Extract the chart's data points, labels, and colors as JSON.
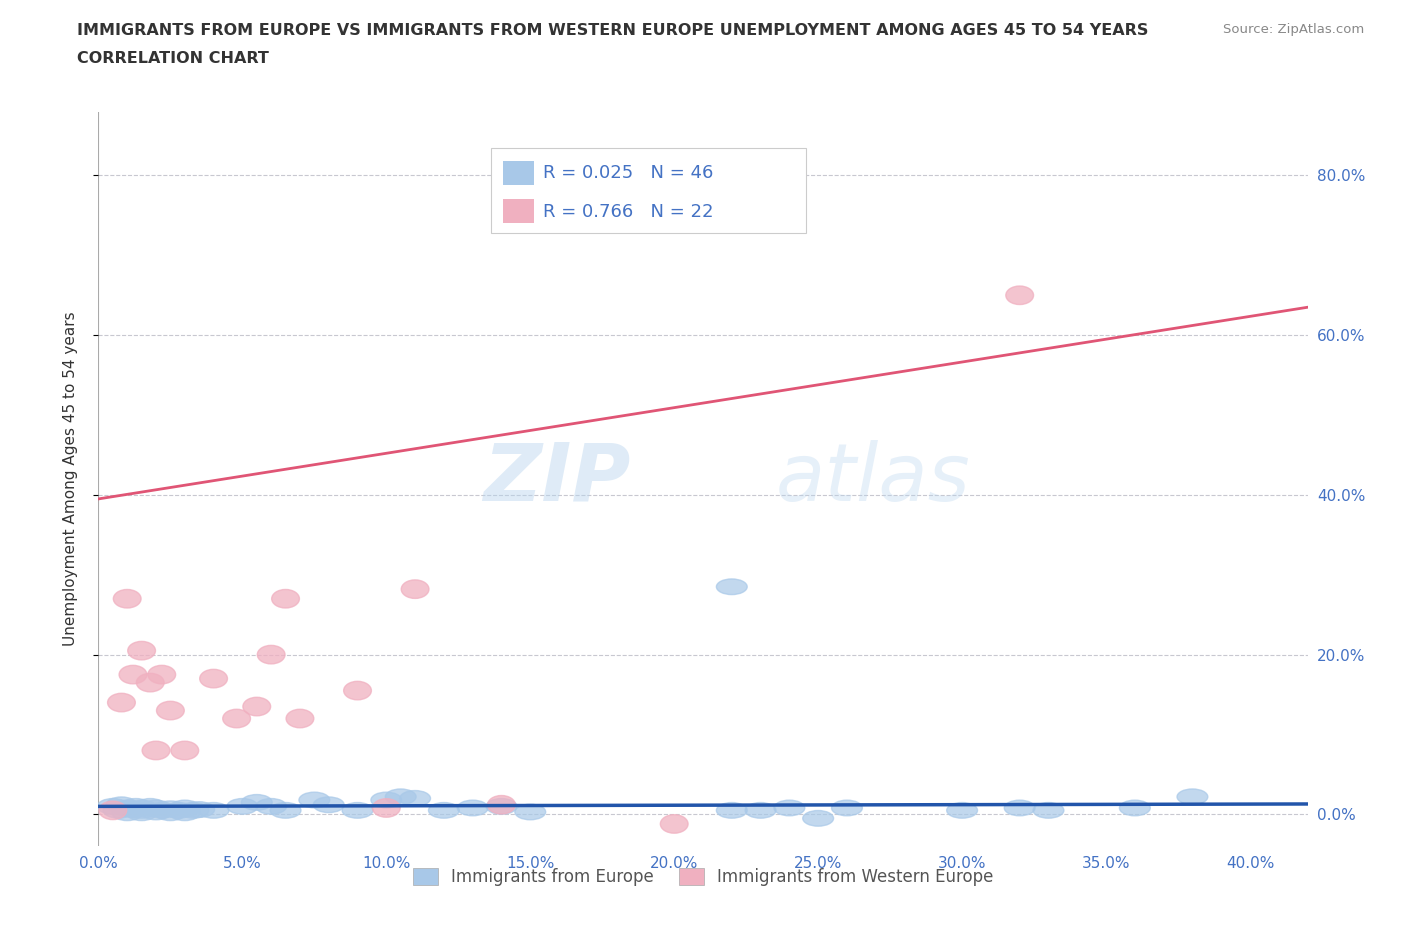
{
  "title_line1": "IMMIGRANTS FROM EUROPE VS IMMIGRANTS FROM WESTERN EUROPE UNEMPLOYMENT AMONG AGES 45 TO 54 YEARS",
  "title_line2": "CORRELATION CHART",
  "source": "Source: ZipAtlas.com",
  "ylabel": "Unemployment Among Ages 45 to 54 years",
  "xlim": [
    0.0,
    0.42
  ],
  "ylim": [
    -0.04,
    0.88
  ],
  "xticks": [
    0.0,
    0.05,
    0.1,
    0.15,
    0.2,
    0.25,
    0.3,
    0.35,
    0.4
  ],
  "ytick_positions": [
    0.0,
    0.2,
    0.4,
    0.6,
    0.8
  ],
  "ytick_labels": [
    "0.0%",
    "20.0%",
    "40.0%",
    "60.0%",
    "80.0%"
  ],
  "xtick_labels": [
    "0.0%",
    "5.0%",
    "10.0%",
    "15.0%",
    "20.0%",
    "25.0%",
    "30.0%",
    "35.0%",
    "40.0%"
  ],
  "blue_R": 0.025,
  "blue_N": 46,
  "pink_R": 0.766,
  "pink_N": 22,
  "blue_color": "#A8C8E8",
  "pink_color": "#F0B0C0",
  "blue_line_color": "#2255AA",
  "pink_line_color": "#E05575",
  "legend_label_blue": "Immigrants from Europe",
  "legend_label_pink": "Immigrants from Western Europe",
  "watermark_zip": "ZIP",
  "watermark_atlas": "atlas",
  "grid_color": "#C8C8D0",
  "blue_x": [
    0.005,
    0.007,
    0.008,
    0.01,
    0.01,
    0.012,
    0.013,
    0.015,
    0.015,
    0.015,
    0.018,
    0.02,
    0.02,
    0.022,
    0.025,
    0.025,
    0.028,
    0.03,
    0.03,
    0.033,
    0.035,
    0.04,
    0.05,
    0.055,
    0.06,
    0.065,
    0.075,
    0.08,
    0.09,
    0.1,
    0.105,
    0.11,
    0.12,
    0.13,
    0.14,
    0.15,
    0.22,
    0.23,
    0.24,
    0.25,
    0.26,
    0.3,
    0.32,
    0.33,
    0.36,
    0.38
  ],
  "blue_y": [
    0.01,
    0.005,
    0.012,
    0.008,
    0.002,
    0.006,
    0.01,
    0.005,
    0.008,
    0.002,
    0.01,
    0.008,
    0.003,
    0.005,
    0.007,
    0.002,
    0.005,
    0.008,
    0.002,
    0.005,
    0.006,
    0.005,
    0.01,
    0.015,
    0.01,
    0.005,
    0.018,
    0.012,
    0.005,
    0.018,
    0.022,
    0.02,
    0.005,
    0.008,
    0.01,
    0.003,
    0.005,
    0.005,
    0.008,
    -0.005,
    0.008,
    0.005,
    0.008,
    0.005,
    0.008,
    0.022
  ],
  "blue_outlier_x": [
    0.22
  ],
  "blue_outlier_y": [
    0.285
  ],
  "pink_x": [
    0.005,
    0.008,
    0.01,
    0.012,
    0.015,
    0.018,
    0.02,
    0.022,
    0.025,
    0.03,
    0.04,
    0.048,
    0.055,
    0.06,
    0.065,
    0.07,
    0.09,
    0.1,
    0.11,
    0.14,
    0.2,
    0.32
  ],
  "pink_y": [
    0.005,
    0.14,
    0.27,
    0.175,
    0.205,
    0.165,
    0.08,
    0.175,
    0.13,
    0.08,
    0.17,
    0.12,
    0.135,
    0.2,
    0.27,
    0.12,
    0.155,
    0.008,
    0.282,
    0.012,
    -0.012,
    0.65
  ],
  "pink_line_x0": 0.0,
  "pink_line_y0": 0.395,
  "pink_line_x1": 0.42,
  "pink_line_y1": 0.635,
  "blue_line_x0": 0.0,
  "blue_line_y0": 0.01,
  "blue_line_x1": 0.42,
  "blue_line_y1": 0.013
}
